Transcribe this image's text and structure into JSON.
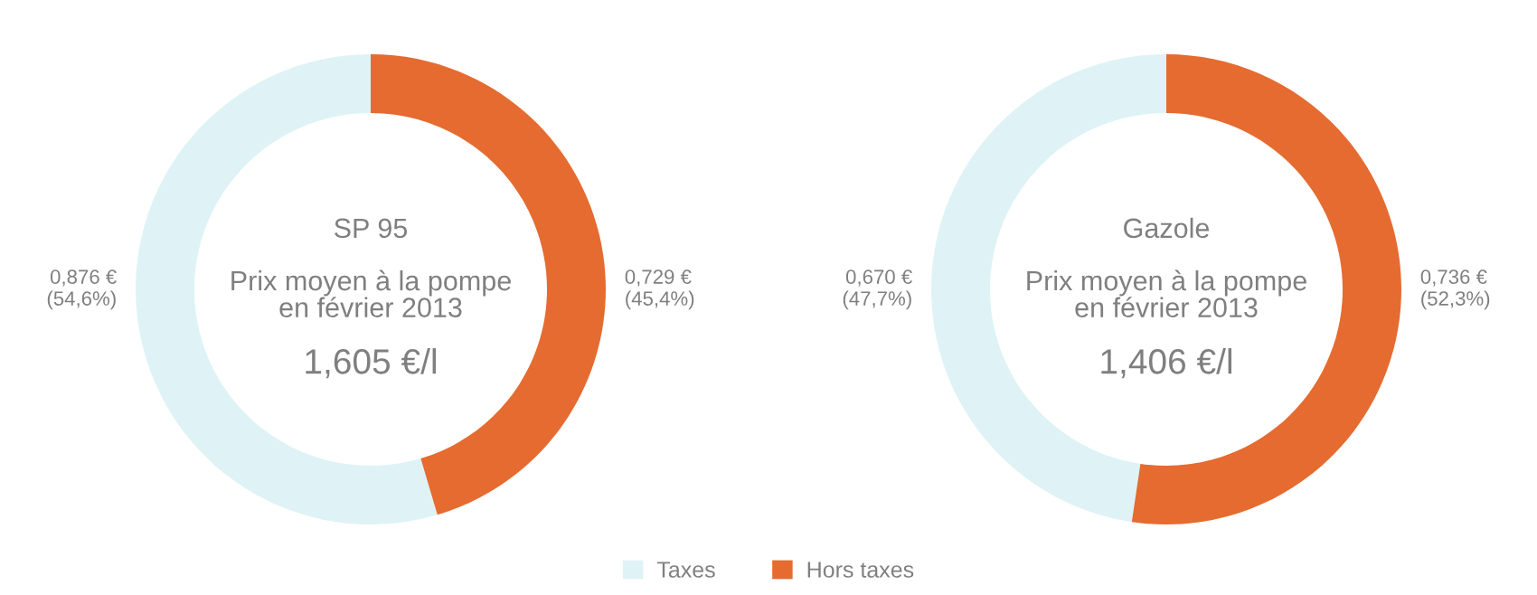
{
  "chart_data": [
    {
      "type": "donut",
      "title": "SP 95",
      "categories": [
        "Taxes",
        "Hors taxes"
      ],
      "values": [
        0.876,
        0.729
      ],
      "colors": [
        "#dff3f6",
        "#e56b30"
      ],
      "value_labels": [
        "0,876 €\n(54,6%)",
        "0,729 €\n(45,4%)"
      ],
      "annotations": [
        "Prix moyen à la pompe\nen février 2013",
        "1,605 €/l"
      ],
      "legend": "bottom right"
    },
    {
      "type": "donut",
      "title": "Gazole",
      "categories": [
        null,
        null
      ],
      "values": [
        0.67,
        0.736
      ],
      "colors": [
        "#dff3f6",
        "#e56b30"
      ],
      "value_labels": [
        "0,670 €\n(47,7%)",
        "0,736 €\n(52,3%)"
      ],
      "annotations": [
        "Prix moyen à la pompe\nen février 2013",
        "1,406 €/l"
      ]
    }
  ]
}
